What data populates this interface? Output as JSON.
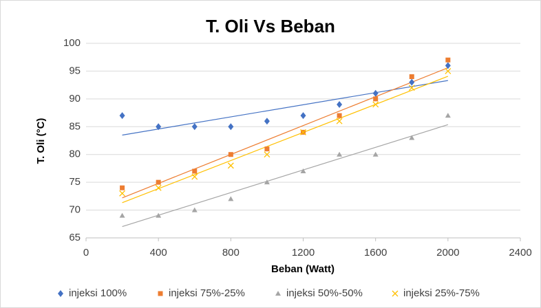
{
  "chart_data": {
    "type": "scatter",
    "title": "T. Oli  Vs Beban",
    "x_label": "Beban (Watt)",
    "y_label": "T. Oli (°C)",
    "x": [
      200,
      400,
      600,
      800,
      1000,
      1200,
      1400,
      1600,
      1800,
      2000
    ],
    "series": [
      {
        "name": "injeksi 100%",
        "color": "#4472c4",
        "marker": "diamond",
        "values": [
          87,
          85,
          85,
          85,
          86,
          87,
          89,
          91,
          93,
          96
        ]
      },
      {
        "name": "injeksi 75%-25%",
        "color": "#ed7d31",
        "marker": "square",
        "values": [
          74,
          75,
          77,
          80,
          81,
          84,
          87,
          90,
          94,
          97
        ]
      },
      {
        "name": "injeksi 50%-50%",
        "color": "#a5a5a5",
        "marker": "triangle",
        "values": [
          69,
          69,
          70,
          72,
          75,
          77,
          80,
          80,
          83,
          87
        ]
      },
      {
        "name": "injeksi 25%-75%",
        "color": "#ffc000",
        "marker": "x",
        "values": [
          73,
          74,
          76,
          78,
          80,
          84,
          86,
          89,
          92,
          95
        ]
      }
    ],
    "trendline": "linear",
    "xlim": [
      0,
      2400
    ],
    "xticks": [
      0,
      400,
      800,
      1200,
      1600,
      2000,
      2400
    ],
    "ylim": [
      65,
      100
    ],
    "yticks": [
      65,
      70,
      75,
      80,
      85,
      90,
      95,
      100
    ],
    "grid": true,
    "legend": "bottom"
  }
}
